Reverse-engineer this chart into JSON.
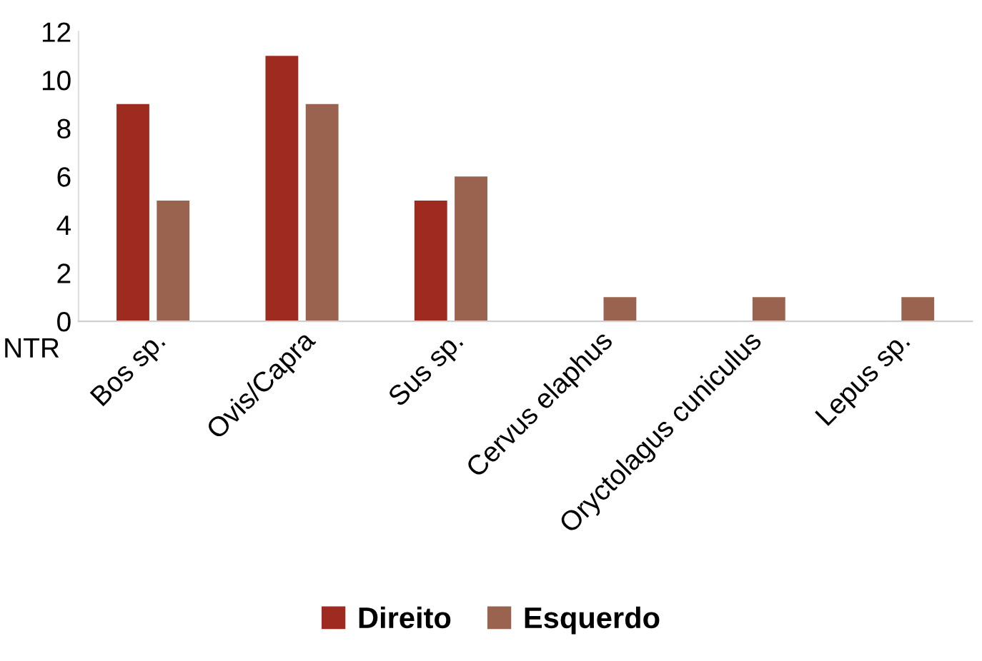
{
  "chart_data": {
    "type": "bar",
    "ylabel": "NTR",
    "categories": [
      "Bos sp.",
      "Ovis/Capra",
      "Sus sp.",
      "Cervus elaphus",
      "Oryctolagus cuniculus",
      "Lepus sp."
    ],
    "series": [
      {
        "name": "Direito",
        "color": "#9e2b20",
        "values": [
          9,
          11,
          5,
          0,
          0,
          0
        ]
      },
      {
        "name": "Esquerdo",
        "color": "#9a6350",
        "values": [
          5,
          9,
          6,
          1,
          1,
          1
        ]
      }
    ],
    "ylim": [
      0,
      12
    ],
    "yticks": [
      0,
      2,
      4,
      6,
      8,
      10,
      12
    ],
    "grid": false,
    "legend": "bottom"
  }
}
